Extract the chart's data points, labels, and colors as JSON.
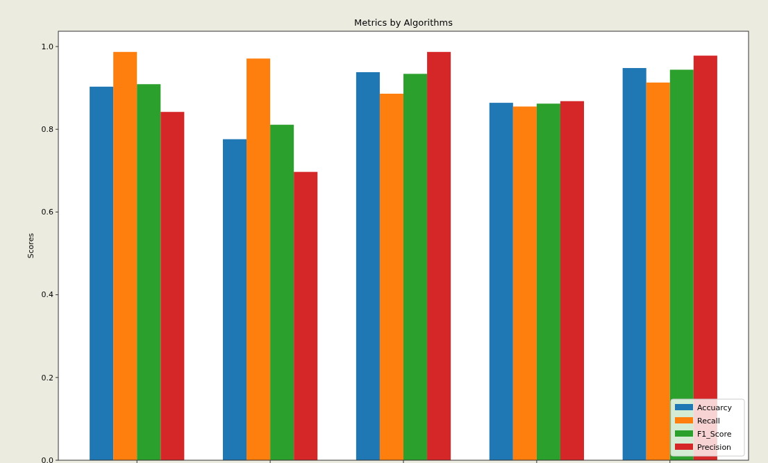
{
  "chart_data": {
    "type": "bar",
    "title": "Metrics by Algorithms",
    "ylabel": "Scores",
    "categories": [
      null,
      null,
      null,
      null,
      null
    ],
    "series": [
      {
        "name": "Accuarcy",
        "color": "#1f77b4",
        "values": [
          0.903,
          0.776,
          0.938,
          0.864,
          0.948
        ]
      },
      {
        "name": "Recall",
        "color": "#ff7f0e",
        "values": [
          0.987,
          0.971,
          0.886,
          0.855,
          0.913
        ]
      },
      {
        "name": "F1_Score",
        "color": "#2ca02c",
        "values": [
          0.909,
          0.811,
          0.934,
          0.862,
          0.944
        ]
      },
      {
        "name": "Precision",
        "color": "#d62728",
        "values": [
          0.842,
          0.697,
          0.987,
          0.868,
          0.978
        ]
      }
    ],
    "ylim": [
      0,
      1.037
    ],
    "yticks": [
      {
        "value": 0,
        "label": "0.0"
      },
      {
        "value": 0.2,
        "label": "0.2"
      },
      {
        "value": 0.4,
        "label": "0.4"
      },
      {
        "value": 0.6,
        "label": "0.6"
      },
      {
        "value": 0.8,
        "label": "0.8"
      },
      {
        "value": 1,
        "label": "1.0"
      }
    ],
    "grid": false,
    "legend": "bottom right"
  }
}
